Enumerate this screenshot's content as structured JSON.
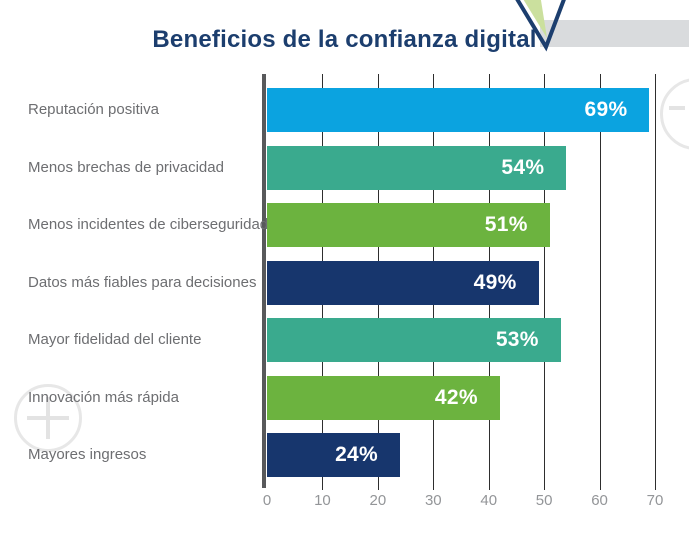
{
  "page": {
    "title": "Beneficios de la confianza digital",
    "title_color": "#1c3e6e",
    "background": "#ffffff"
  },
  "decor": {
    "top_rectangle_color": "#d9dbdd",
    "checkmark_fill": "#cbe09e",
    "checkmark_stroke": "#1c3e6e",
    "plus_control_icon": "plus-icon",
    "minus_control_icon": "minus-icon",
    "control_color": "#e7e7e7"
  },
  "chart_data": {
    "type": "bar",
    "orientation": "horizontal",
    "title": "Beneficios de la confianza digital",
    "categories": [
      "Reputación positiva",
      "Menos brechas de privacidad",
      "Menos incidentes de ciberseguridad",
      "Datos más fiables para decisiones",
      "Mayor fidelidad del cliente",
      "Innovación más rápida",
      "Mayores ingresos"
    ],
    "values": [
      69,
      54,
      51,
      49,
      53,
      42,
      24
    ],
    "value_labels": [
      "69%",
      "54%",
      "51%",
      "49%",
      "53%",
      "42%",
      "24%"
    ],
    "bar_colors": [
      "#0ba3e0",
      "#3aaa8e",
      "#6cb33f",
      "#17366d",
      "#3aaa8e",
      "#6cb33f",
      "#17366d"
    ],
    "xlabel": "",
    "ylabel": "",
    "xlim": [
      0,
      70
    ],
    "xticks": [
      0,
      10,
      20,
      30,
      40,
      50,
      60,
      70
    ],
    "grid": true,
    "legend": false,
    "label_color": "#6d6e71",
    "tick_color": "#939598",
    "value_label_color": "#ffffff"
  }
}
